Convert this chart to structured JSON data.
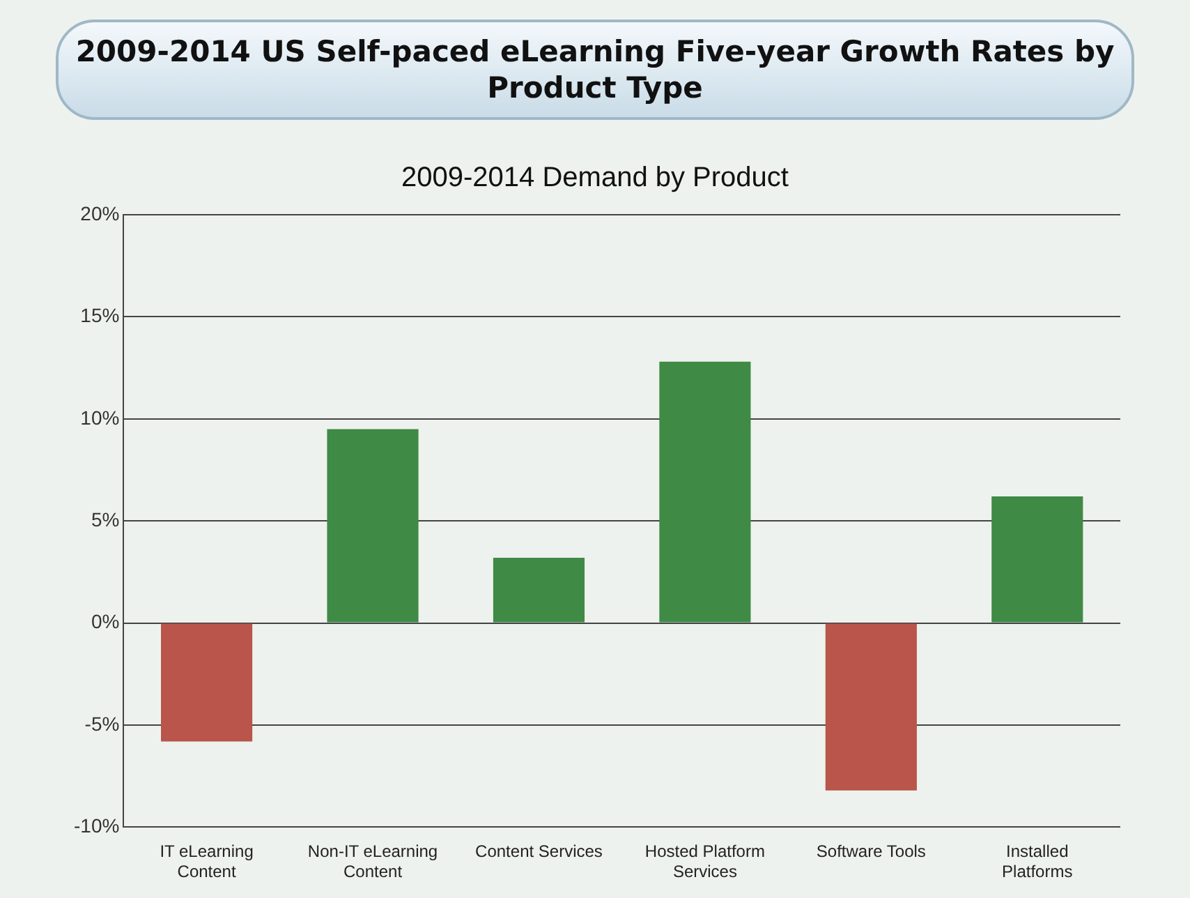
{
  "chart_data": {
    "type": "bar",
    "title": "2009-2014 US Self-paced eLearning Five-year Growth Rates by Product Type",
    "subtitle": "2009-2014 Demand by Product",
    "categories": [
      "IT eLearning Content",
      "Non-IT eLearning Content",
      "Content Services",
      "Hosted Platform Services",
      "Software Tools",
      "Installed Platforms"
    ],
    "values": [
      -5.8,
      9.5,
      3.2,
      12.8,
      -8.2,
      6.2
    ],
    "colors": [
      "#b9554a",
      "#3f8a45",
      "#3f8a45",
      "#3f8a45",
      "#b9554a",
      "#3f8a45"
    ],
    "ylim": [
      -10,
      20
    ],
    "yticks": [
      {
        "value": -10,
        "label": "-10%"
      },
      {
        "value": -5,
        "label": "-5%"
      },
      {
        "value": 0,
        "label": "0%"
      },
      {
        "value": 5,
        "label": "5%"
      },
      {
        "value": 10,
        "label": "10%"
      },
      {
        "value": 15,
        "label": "15%"
      },
      {
        "value": 20,
        "label": "20%"
      }
    ],
    "grid": "y",
    "legend": false
  }
}
